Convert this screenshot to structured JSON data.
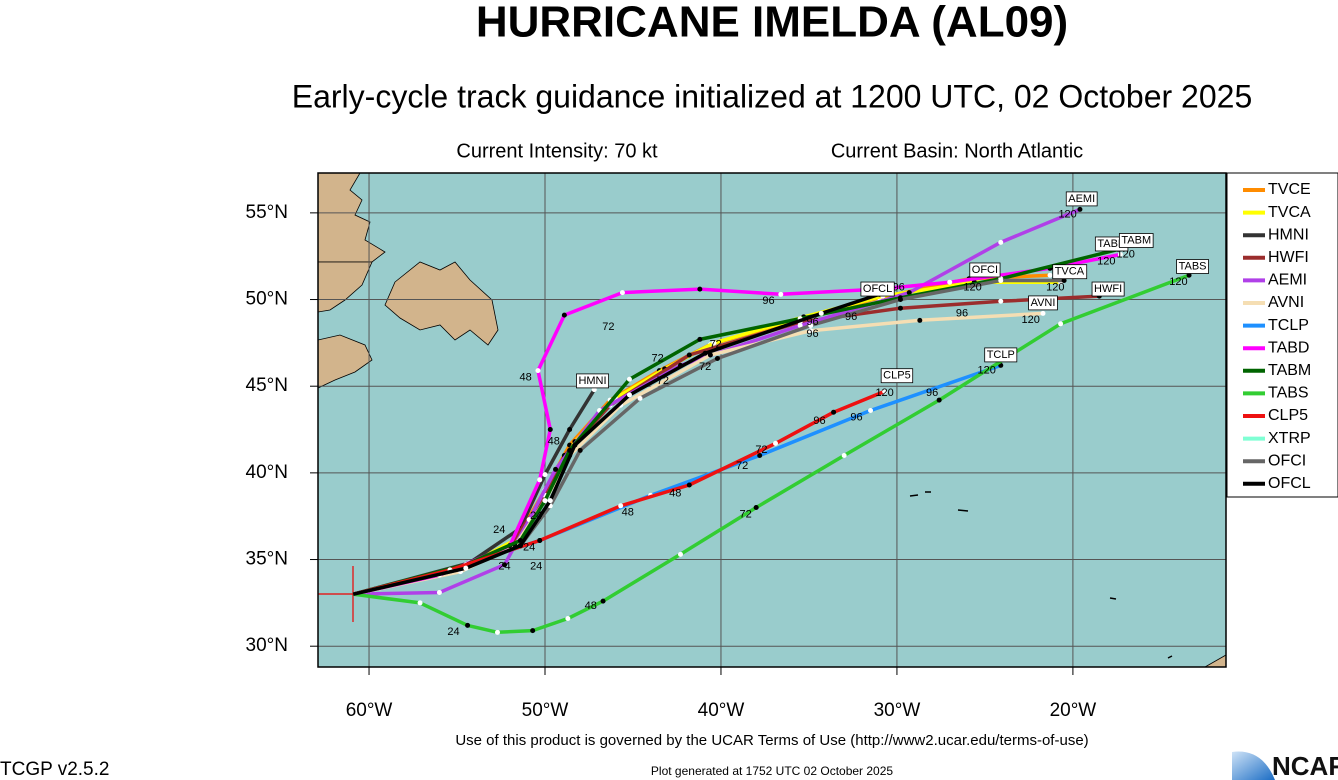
{
  "header": {
    "title": "HURRICANE IMELDA (AL09)",
    "subtitle": "Early-cycle track guidance initialized at 1200 UTC, 02 October 2025",
    "intensity": "Current Intensity: 70 kt",
    "basin": "Current Basin: North Atlantic"
  },
  "map": {
    "xlim": [
      -62.9,
      -11.3
    ],
    "ylim": [
      28.8,
      57.3
    ],
    "xticks": [
      {
        "value": -60,
        "label": "60°W"
      },
      {
        "value": -50,
        "label": "50°W"
      },
      {
        "value": -40,
        "label": "40°W"
      },
      {
        "value": -30,
        "label": "30°W"
      },
      {
        "value": -20,
        "label": "20°W"
      }
    ],
    "yticks": [
      {
        "value": 30,
        "label": "30°N"
      },
      {
        "value": 35,
        "label": "35°N"
      },
      {
        "value": 40,
        "label": "40°N"
      },
      {
        "value": 45,
        "label": "45°N"
      },
      {
        "value": 50,
        "label": "50°N"
      },
      {
        "value": 55,
        "label": "55°N"
      }
    ],
    "models": [
      {
        "name": "TVCE",
        "color": "#ff8c00",
        "lon": [
          -60.9,
          -54.8,
          -51.7,
          -50.0,
          -48.6,
          -46.3,
          -43.5,
          -40.6,
          -35.5,
          -31.0,
          -25.9,
          -21.3
        ],
        "lat": [
          33.0,
          34.5,
          36.1,
          39.0,
          41.6,
          44.2,
          45.9,
          47.4,
          48.9,
          50.1,
          51.2,
          51.4
        ]
      },
      {
        "name": "TVCA",
        "color": "#ffff00",
        "lon": [
          -60.9,
          -54.5,
          -51.4,
          -49.7,
          -48.3,
          -46.0,
          -43.2,
          -40.4,
          -35.3,
          -30.8,
          -25.6,
          -20.7
        ],
        "lat": [
          33.0,
          34.6,
          36.3,
          39.2,
          41.8,
          44.3,
          46.0,
          47.5,
          49.0,
          50.2,
          51.0,
          51.0
        ]
      },
      {
        "name": "HMNI",
        "color": "#333333",
        "lon": [
          -60.9,
          -54.3,
          -51.4,
          -50.0,
          -48.6,
          -47.2
        ],
        "lat": [
          33.0,
          34.8,
          36.8,
          39.9,
          42.5,
          44.8
        ]
      },
      {
        "name": "HWFI",
        "color": "#9b2d2d",
        "lon": [
          -60.9,
          -54.8,
          -52.0,
          -50.0,
          -48.9,
          -46.3,
          -41.8,
          -35.5,
          -29.8,
          -24.1,
          -18.5
        ],
        "lat": [
          33.0,
          34.4,
          35.8,
          38.7,
          41.0,
          43.9,
          46.8,
          48.7,
          49.5,
          49.9,
          50.2
        ]
      },
      {
        "name": "AEMI",
        "color": "#b040e8",
        "lon": [
          -60.9,
          -56.0,
          -52.3,
          -50.9,
          -49.4,
          -46.9,
          -42.3,
          -35.5,
          -29.3,
          -24.1,
          -19.6
        ],
        "lat": [
          33.0,
          33.1,
          34.7,
          37.3,
          40.2,
          43.6,
          46.2,
          48.5,
          50.4,
          53.3,
          55.2
        ]
      },
      {
        "name": "AVNI",
        "color": "#f5deb3",
        "lon": [
          -60.9,
          -54.8,
          -51.7,
          -50.0,
          -48.6,
          -45.7,
          -40.6,
          -34.9,
          -28.7,
          -21.7
        ],
        "lat": [
          33.0,
          34.3,
          35.8,
          38.4,
          41.0,
          43.9,
          46.8,
          48.2,
          48.8,
          49.2
        ]
      },
      {
        "name": "TCLP",
        "color": "#1e90ff",
        "lon": [
          -60.9,
          -55.4,
          -50.3,
          -44.0,
          -37.8,
          -31.5,
          -24.1
        ],
        "lat": [
          33.0,
          34.4,
          36.1,
          38.7,
          41.0,
          43.6,
          46.2
        ]
      },
      {
        "name": "TABD",
        "color": "#ff00ff",
        "lon": [
          -60.9,
          -56.0,
          -52.0,
          -50.3,
          -49.7,
          -50.4,
          -48.9,
          -45.6,
          -41.2,
          -36.6,
          -31.0,
          -27.0,
          -21.3,
          -17.3
        ],
        "lat": [
          33.0,
          34.1,
          35.8,
          39.6,
          42.5,
          45.9,
          49.1,
          50.4,
          50.6,
          50.3,
          50.6,
          51.0,
          51.8,
          52.6
        ]
      },
      {
        "name": "TABM",
        "color": "#006400",
        "lon": [
          -60.9,
          -54.5,
          -51.4,
          -50.0,
          -48.6,
          -45.2,
          -41.2,
          -35.5,
          -29.8,
          -24.1,
          -17.4
        ],
        "lat": [
          33.0,
          34.7,
          36.1,
          38.4,
          41.3,
          45.4,
          47.7,
          48.9,
          50.1,
          51.2,
          52.9
        ]
      },
      {
        "name": "TABS",
        "color": "#32cd32",
        "lon": [
          -60.9,
          -57.1,
          -54.4,
          -52.7,
          -50.7,
          -48.7,
          -46.7,
          -42.3,
          -38.0,
          -33.0,
          -27.6,
          -20.7,
          -13.4
        ],
        "lat": [
          33.0,
          32.5,
          31.2,
          30.8,
          30.9,
          31.6,
          32.6,
          35.3,
          38.0,
          41.0,
          44.2,
          48.6,
          51.4
        ]
      },
      {
        "name": "CLP5",
        "color": "#ee1111",
        "lon": [
          -60.9,
          -55.4,
          -50.3,
          -45.7,
          -41.8,
          -36.9,
          -33.6,
          -30.7
        ],
        "lat": [
          33.0,
          34.4,
          36.1,
          38.1,
          39.3,
          41.7,
          43.5,
          44.7
        ]
      },
      {
        "name": "XTRP",
        "color": "#7fffd4"
      },
      {
        "name": "OFCI",
        "color": "#666666",
        "lon": [
          -60.9,
          -54.5,
          -51.4,
          -49.7,
          -48.0,
          -44.6,
          -40.2,
          -34.9,
          -29.8,
          -24.1,
          -20.5
        ],
        "lat": [
          33.0,
          34.5,
          35.8,
          38.1,
          41.3,
          44.3,
          46.6,
          48.5,
          50.0,
          51.1,
          51.1
        ]
      },
      {
        "name": "OFCL",
        "color": "#000000",
        "lon": [
          -60.9,
          -54.5,
          -51.4,
          -49.7,
          -48.3,
          -45.2,
          -40.9,
          -34.3,
          -31.0
        ],
        "lat": [
          33.0,
          34.5,
          35.8,
          38.4,
          41.6,
          44.5,
          46.9,
          49.2,
          50.3
        ]
      }
    ],
    "name_labels": [
      {
        "text": "AEMI",
        "lon": -19.5,
        "lat": 55.8
      },
      {
        "text": "TABD",
        "lon": -17.8,
        "lat": 53.2
      },
      {
        "text": "TABM",
        "lon": -16.4,
        "lat": 53.4
      },
      {
        "text": "TABS",
        "lon": -13.2,
        "lat": 51.9
      },
      {
        "text": "OFCI",
        "lon": -25.0,
        "lat": 51.7
      },
      {
        "text": "TVCA",
        "lon": -20.2,
        "lat": 51.6
      },
      {
        "text": "HWFI",
        "lon": -18.0,
        "lat": 50.6
      },
      {
        "text": "OFCL",
        "lon": -31.1,
        "lat": 50.6
      },
      {
        "text": "AVNI",
        "lon": -21.7,
        "lat": 49.8
      },
      {
        "text": "CLP5",
        "lon": -30.0,
        "lat": 45.6
      },
      {
        "text": "TCLP",
        "lon": -24.1,
        "lat": 46.8
      },
      {
        "text": "HMNI",
        "lon": -47.3,
        "lat": 45.3
      }
    ],
    "tau_labels": [
      {
        "text": "120",
        "lon": -20.3,
        "lat": 54.9
      },
      {
        "text": "120",
        "lon": -18.1,
        "lat": 52.2
      },
      {
        "text": "120",
        "lon": -17.0,
        "lat": 52.6
      },
      {
        "text": "120",
        "lon": -14.0,
        "lat": 51.0
      },
      {
        "text": "120",
        "lon": -25.7,
        "lat": 50.7
      },
      {
        "text": "120",
        "lon": -21.0,
        "lat": 50.7
      },
      {
        "text": "120",
        "lon": -22.4,
        "lat": 48.8
      },
      {
        "text": "120",
        "lon": -30.7,
        "lat": 44.6
      },
      {
        "text": "120",
        "lon": -24.9,
        "lat": 45.9
      },
      {
        "text": "96",
        "lon": -37.3,
        "lat": 49.9
      },
      {
        "text": "96",
        "lon": -34.8,
        "lat": 48.7
      },
      {
        "text": "96",
        "lon": -32.6,
        "lat": 49.0
      },
      {
        "text": "96",
        "lon": -26.3,
        "lat": 49.2
      },
      {
        "text": "96",
        "lon": -34.8,
        "lat": 48.0
      },
      {
        "text": "96",
        "lon": -34.4,
        "lat": 43.0
      },
      {
        "text": "96",
        "lon": -32.3,
        "lat": 43.2
      },
      {
        "text": "96",
        "lon": -28.0,
        "lat": 44.6
      },
      {
        "text": "96",
        "lon": -29.9,
        "lat": 50.7
      },
      {
        "text": "72",
        "lon": -46.4,
        "lat": 48.4
      },
      {
        "text": "72",
        "lon": -43.6,
        "lat": 46.6
      },
      {
        "text": "72",
        "lon": -43.3,
        "lat": 45.3
      },
      {
        "text": "72",
        "lon": -40.9,
        "lat": 46.1
      },
      {
        "text": "72",
        "lon": -40.3,
        "lat": 47.4
      },
      {
        "text": "72",
        "lon": -38.6,
        "lat": 37.6
      },
      {
        "text": "72",
        "lon": -38.8,
        "lat": 40.4
      },
      {
        "text": "72",
        "lon": -37.7,
        "lat": 41.3
      },
      {
        "text": "48",
        "lon": -51.1,
        "lat": 45.5
      },
      {
        "text": "48",
        "lon": -49.5,
        "lat": 41.8
      },
      {
        "text": "48",
        "lon": -47.4,
        "lat": 32.3
      },
      {
        "text": "48",
        "lon": -45.3,
        "lat": 37.7
      },
      {
        "text": "48",
        "lon": -42.6,
        "lat": 38.8
      },
      {
        "text": "24",
        "lon": -55.2,
        "lat": 30.8
      },
      {
        "text": "24",
        "lon": -50.5,
        "lat": 34.6
      },
      {
        "text": "24",
        "lon": -50.5,
        "lat": 37.5
      },
      {
        "text": "24",
        "lon": -50.9,
        "lat": 35.7
      },
      {
        "text": "24",
        "lon": -52.3,
        "lat": 34.6
      },
      {
        "text": "24",
        "lon": -52.6,
        "lat": 36.7
      }
    ]
  },
  "footer": {
    "terms": "Use of this product is governed by the UCAR Terms of Use (http://www2.ucar.edu/terms-of-use)",
    "generated": "Plot generated at 1752 UTC   02 October 2025",
    "version": "TCGP v2.5.2",
    "logo": "NCAR"
  }
}
